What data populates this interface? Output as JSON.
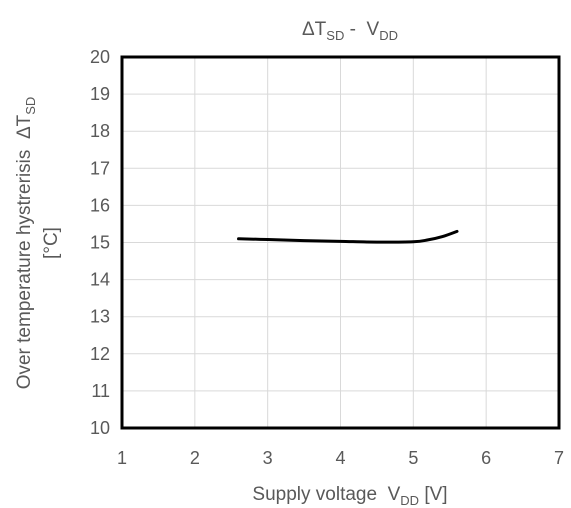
{
  "chart_data": {
    "type": "line",
    "title": {
      "main": "ΔT",
      "sub": "SD",
      "sep": " -  ",
      "main2": "V",
      "sub2": "DD"
    },
    "xlabel": {
      "pre": "Supply voltage  V",
      "sub": "DD",
      "post": " [V]"
    },
    "ylabel": {
      "line1_pre": "Over temperature hystrerisis  ΔT",
      "line1_sub": "SD",
      "line2": "[°C]"
    },
    "xlim": [
      1,
      7
    ],
    "ylim": [
      10,
      20
    ],
    "x_ticks": [
      "1",
      "2",
      "3",
      "4",
      "5",
      "6",
      "7"
    ],
    "y_ticks": [
      "10",
      "11",
      "12",
      "13",
      "14",
      "15",
      "16",
      "17",
      "18",
      "19",
      "20"
    ],
    "grid": true,
    "legend": "none",
    "series": [
      {
        "color": "#000000",
        "x": [
          2.6,
          3.0,
          3.5,
          4.0,
          4.5,
          5.0,
          5.2,
          5.4,
          5.6
        ],
        "y": [
          15.1,
          15.08,
          15.05,
          15.03,
          15.01,
          15.02,
          15.07,
          15.16,
          15.3
        ]
      }
    ]
  }
}
